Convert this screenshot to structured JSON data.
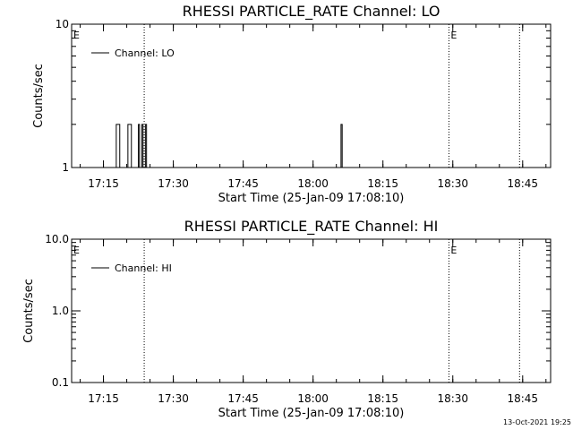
{
  "footer": "13-Oct-2021 19:25",
  "chart_data": [
    {
      "type": "line",
      "title": "RHESSI PARTICLE_RATE Channel: LO",
      "xlabel": "Start Time (25-Jan-09 17:08:10)",
      "ylabel": "Counts/sec",
      "yscale": "log",
      "ylim": [
        1,
        10
      ],
      "ytick_labels": [
        "10",
        "1"
      ],
      "ytick_values": [
        10,
        1
      ],
      "xlim": [
        "17:08:10",
        "18:51:00"
      ],
      "xtick_labels": [
        "17:15",
        "17:30",
        "17:45",
        "18:00",
        "18:15",
        "18:30",
        "18:45"
      ],
      "legend": "top-left",
      "series": [
        {
          "name": "Channel: LO",
          "color": "#000000",
          "points": [
            [
              "17:17:30",
              1
            ],
            [
              "17:17:45",
              2
            ],
            [
              "17:18:15",
              2
            ],
            [
              "17:18:30",
              1
            ],
            [
              "17:20:00",
              1
            ],
            [
              "17:20:15",
              2
            ],
            [
              "17:20:45",
              2
            ],
            [
              "17:21:00",
              1
            ],
            [
              "17:22:15",
              1
            ],
            [
              "17:22:30",
              2
            ],
            [
              "17:22:45",
              1
            ],
            [
              "17:23:00",
              1
            ],
            [
              "17:23:15",
              2
            ],
            [
              "17:23:30",
              1
            ],
            [
              "17:23:45",
              1
            ],
            [
              "17:24:00",
              2
            ],
            [
              "17:24:15",
              1
            ],
            [
              "18:05:45",
              1
            ],
            [
              "18:06:00",
              2
            ],
            [
              "18:06:15",
              1
            ]
          ]
        }
      ],
      "markers": [
        {
          "label": "E",
          "time": "17:08:10"
        },
        {
          "label": "",
          "time": "17:23:45"
        },
        {
          "label": "E",
          "time": "18:29:10"
        },
        {
          "label": "",
          "time": "18:44:20"
        }
      ]
    },
    {
      "type": "line",
      "title": "RHESSI PARTICLE_RATE Channel: HI",
      "xlabel": "Start Time (25-Jan-09 17:08:10)",
      "ylabel": "Counts/sec",
      "yscale": "log",
      "ylim": [
        0.1,
        10
      ],
      "ytick_labels": [
        "10.0",
        "1.0",
        "0.1"
      ],
      "ytick_values": [
        10,
        1,
        0.1
      ],
      "xlim": [
        "17:08:10",
        "18:51:00"
      ],
      "xtick_labels": [
        "17:15",
        "17:30",
        "17:45",
        "18:00",
        "18:15",
        "18:30",
        "18:45"
      ],
      "legend": "top-left",
      "series": [
        {
          "name": "Channel: HI",
          "color": "#000000",
          "points": []
        }
      ],
      "markers": [
        {
          "label": "E",
          "time": "17:08:10"
        },
        {
          "label": "",
          "time": "17:23:45"
        },
        {
          "label": "E",
          "time": "18:29:10"
        },
        {
          "label": "",
          "time": "18:44:20"
        }
      ]
    }
  ]
}
